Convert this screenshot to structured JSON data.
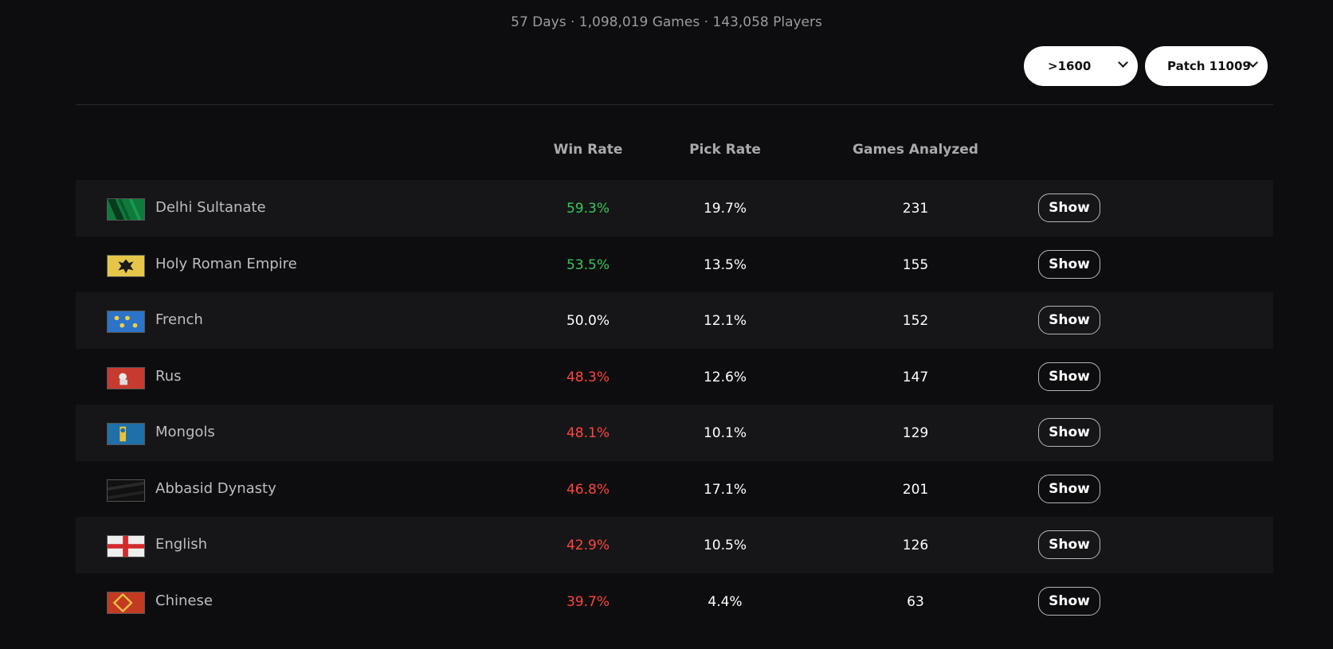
{
  "summary": "57 Days · 1,098,019 Games · 143,058 Players",
  "filters": {
    "rating": ">1600",
    "patch": "Patch 11009"
  },
  "columns": {
    "win_rate": "Win Rate",
    "pick_rate": "Pick Rate",
    "games": "Games Analyzed"
  },
  "show_label": "Show",
  "rows": [
    {
      "name": "Delhi Sultanate",
      "flag": "delhi-sultanate-flag-icon",
      "win": "59.3%",
      "pick": "19.7%",
      "games": "231",
      "status": "good"
    },
    {
      "name": "Holy Roman Empire",
      "flag": "holy-roman-empire-flag-icon",
      "win": "53.5%",
      "pick": "13.5%",
      "games": "155",
      "status": "good"
    },
    {
      "name": "French",
      "flag": "french-flag-icon",
      "win": "50.0%",
      "pick": "12.1%",
      "games": "152",
      "status": "neutral"
    },
    {
      "name": "Rus",
      "flag": "rus-flag-icon",
      "win": "48.3%",
      "pick": "12.6%",
      "games": "147",
      "status": "bad"
    },
    {
      "name": "Mongols",
      "flag": "mongols-flag-icon",
      "win": "48.1%",
      "pick": "10.1%",
      "games": "129",
      "status": "bad"
    },
    {
      "name": "Abbasid Dynasty",
      "flag": "abbasid-dynasty-flag-icon",
      "win": "46.8%",
      "pick": "17.1%",
      "games": "201",
      "status": "bad"
    },
    {
      "name": "English",
      "flag": "english-flag-icon",
      "win": "42.9%",
      "pick": "10.5%",
      "games": "126",
      "status": "bad"
    },
    {
      "name": "Chinese",
      "flag": "chinese-flag-icon",
      "win": "39.7%",
      "pick": "4.4%",
      "games": "63",
      "status": "bad"
    }
  ],
  "colors": {
    "good": "#34c759",
    "neutral": "#ffffff",
    "bad": "#ff453a"
  }
}
